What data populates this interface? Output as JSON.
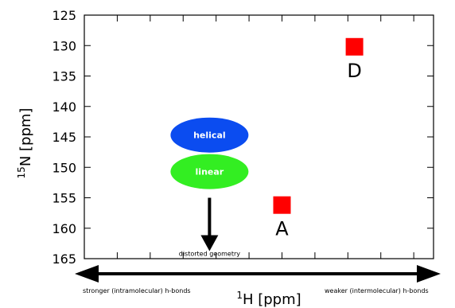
{
  "chart_data": {
    "type": "scatter",
    "xlabel": "H [ppm]",
    "xlabel_sup": "1",
    "ylabel": "N [ppm]",
    "ylabel_sup": "15",
    "y_reversed": true,
    "ylim": [
      125,
      165
    ],
    "y_ticks": [
      125,
      130,
      135,
      140,
      145,
      150,
      155,
      160,
      165
    ],
    "x_tick_count": 10,
    "grid": false,
    "points": [
      {
        "label": "A",
        "x": 6.0,
        "y": 156.2,
        "color": "#ff0000"
      },
      {
        "label": "D",
        "x": 8.2,
        "y": 130.2,
        "color": "#ff0000"
      }
    ],
    "ellipses": [
      {
        "label": "helical",
        "x": 3.8,
        "y": 144.7,
        "color": "#0b4cf0",
        "text_color": "#ffffff"
      },
      {
        "label": "linear",
        "x": 3.8,
        "y": 150.7,
        "color": "#33ee22",
        "text_color": "#ffffff"
      }
    ],
    "arrow_annotation": {
      "label": "distorted geometry",
      "x": 3.8,
      "y_from": 155.0,
      "y_to": 163.5
    },
    "scale_arrow": {
      "left_label": "stronger (intramolecular) h-bonds",
      "right_label": "weaker (intermolecular) h-bonds"
    }
  }
}
